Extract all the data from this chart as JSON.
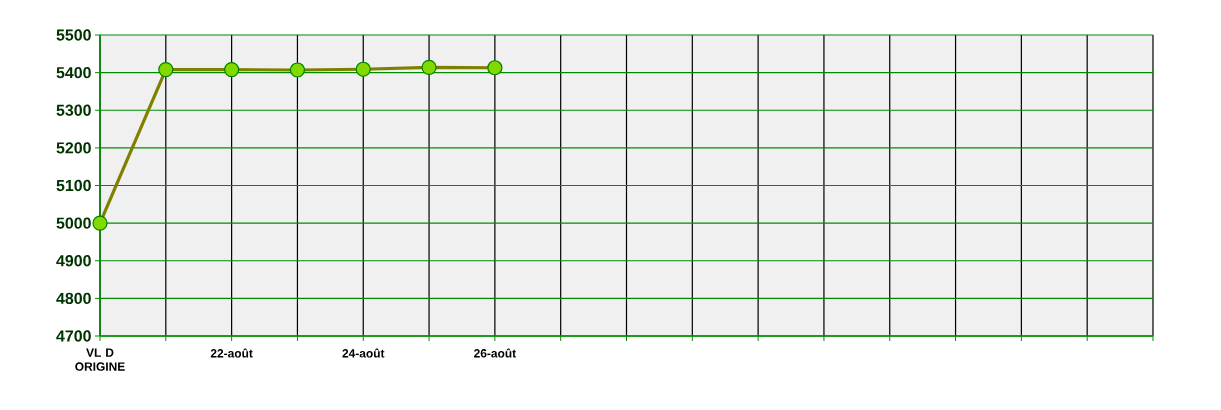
{
  "chart_data": {
    "type": "line",
    "categories": [
      "VL D ORIGINE",
      null,
      "22-août",
      null,
      "24-août",
      null,
      "26-août",
      null,
      null,
      null,
      null,
      null,
      null,
      null,
      null,
      null,
      null
    ],
    "series": [
      {
        "color": "#808000",
        "values": [
          5000,
          5408,
          5408,
          5407,
          5409,
          5414,
          5413,
          null,
          null,
          null,
          null,
          null,
          null,
          null,
          null,
          null,
          null
        ]
      }
    ],
    "ylim": [
      4700,
      5500
    ],
    "yticks": [
      4700,
      4800,
      4900,
      5000,
      5100,
      5200,
      5300,
      5400,
      5500
    ],
    "grid": true,
    "marker": "circle",
    "line_style": "solid"
  }
}
